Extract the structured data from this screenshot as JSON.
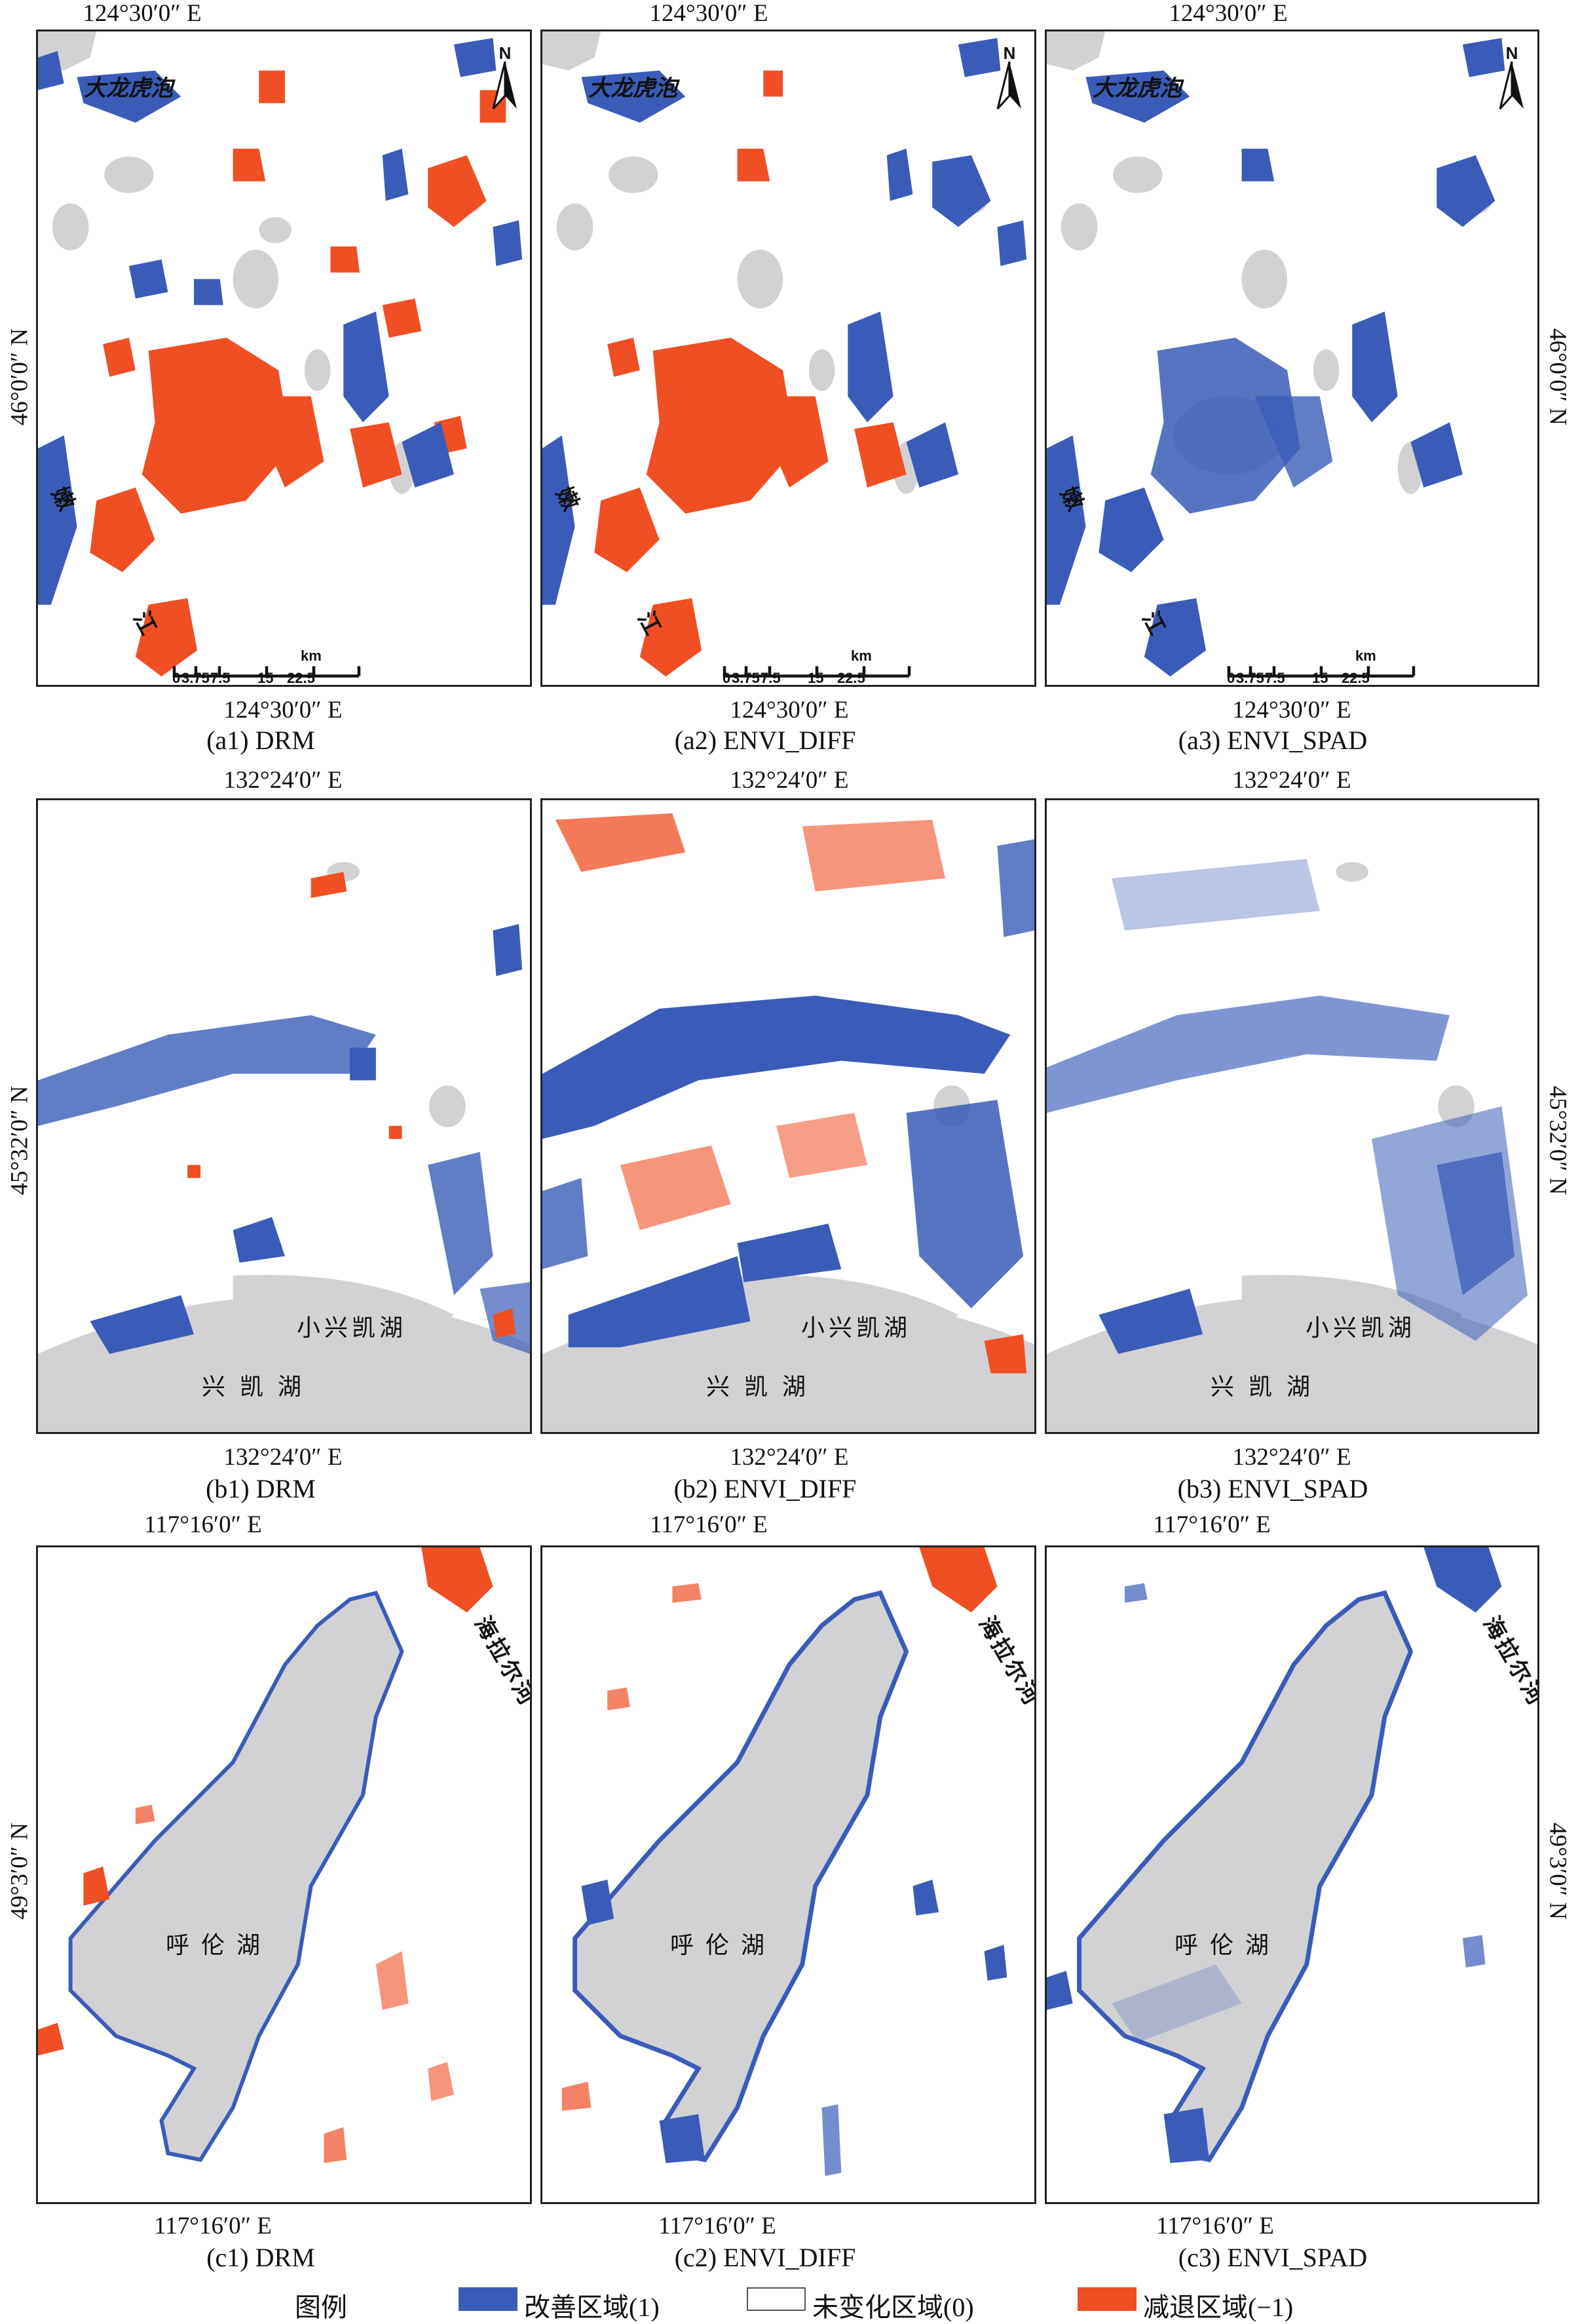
{
  "colors": {
    "improved": "#3a5cb8",
    "unchanged": "#ffffff",
    "decreased": "#f04e23",
    "lake": "#d2d2d4",
    "frame": "#222222"
  },
  "rows": [
    {
      "lon": "124°30′0″ E",
      "lat": "46°0′0″ N",
      "captions": [
        "(a1) DRM",
        "(a2) ENVI_DIFF",
        "(a3) ENVI_SPAD"
      ],
      "place": "大龙虎泡",
      "river_top": "嫩",
      "river_bottom": "江",
      "scale": {
        "labels": [
          "0",
          "3.75",
          "7.5",
          "15",
          "22.5"
        ],
        "unit": "km"
      },
      "north": "N"
    },
    {
      "lon": "132°24′0″ E",
      "lat": "45°32′0″ N",
      "captions": [
        "(b1) DRM",
        "(b2) ENVI_DIFF",
        "(b3) ENVI_SPAD"
      ],
      "small_lake": "小兴凯湖",
      "big_lake": "兴凯湖"
    },
    {
      "lon": "117°16′0″ E",
      "lat": "49°3′0″ N",
      "captions": [
        "(c1) DRM",
        "(c2) ENVI_DIFF",
        "(c3) ENVI_SPAD"
      ],
      "lake": "呼伦湖",
      "river": "海拉尔河"
    }
  ],
  "legend": {
    "title": "图例",
    "items": [
      {
        "label": "改善区域(1)",
        "value": 1
      },
      {
        "label": "未变化区域(0)",
        "value": 0
      },
      {
        "label": "减退区域(−1)",
        "value": -1
      }
    ]
  }
}
